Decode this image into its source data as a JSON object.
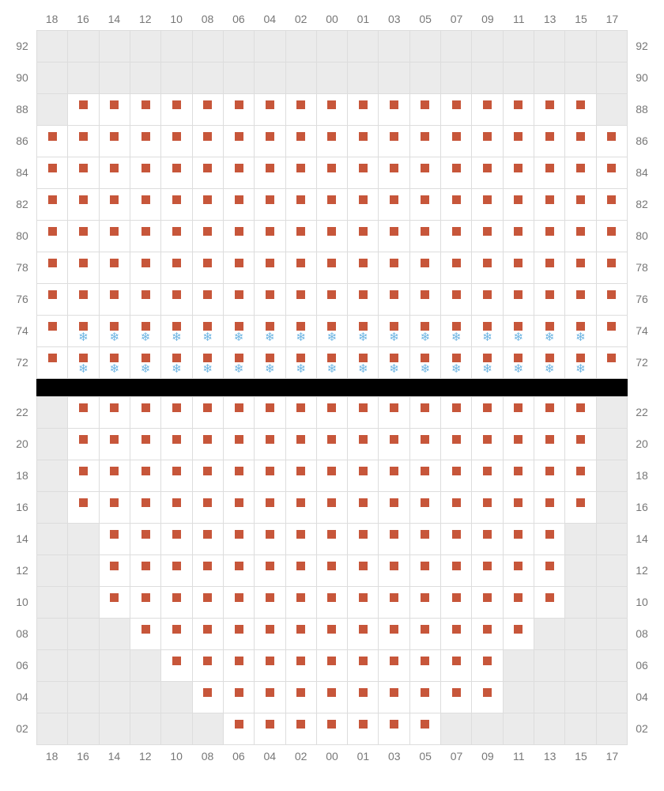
{
  "colors": {
    "seat_marker": "#c7563a",
    "snow_icon": "#6cb4e2",
    "empty_cell": "#ebebeb",
    "grid_border": "#dddddd",
    "label_text": "#777777",
    "gap_bg": "#000000"
  },
  "cell_size": 40,
  "columns": [
    "18",
    "16",
    "14",
    "12",
    "10",
    "08",
    "06",
    "04",
    "02",
    "00",
    "01",
    "03",
    "05",
    "07",
    "09",
    "11",
    "13",
    "15",
    "17"
  ],
  "top_section": {
    "rows": [
      "92",
      "90",
      "88",
      "86",
      "84",
      "82",
      "80",
      "78",
      "76",
      "74",
      "72"
    ],
    "empty_cells": {
      "92": [
        0,
        1,
        2,
        3,
        4,
        5,
        6,
        7,
        8,
        9,
        10,
        11,
        12,
        13,
        14,
        15,
        16,
        17,
        18
      ],
      "90": [
        0,
        1,
        2,
        3,
        4,
        5,
        6,
        7,
        8,
        9,
        10,
        11,
        12,
        13,
        14,
        15,
        16,
        17,
        18
      ],
      "88": [
        0,
        18
      ]
    },
    "seat_in": {
      "92": [],
      "90": [],
      "88": [
        1,
        2,
        3,
        4,
        5,
        6,
        7,
        8,
        9,
        10,
        11,
        12,
        13,
        14,
        15,
        16,
        17
      ],
      "86": [
        0,
        1,
        2,
        3,
        4,
        5,
        6,
        7,
        8,
        9,
        10,
        11,
        12,
        13,
        14,
        15,
        16,
        17,
        18
      ],
      "84": [
        0,
        1,
        2,
        3,
        4,
        5,
        6,
        7,
        8,
        9,
        10,
        11,
        12,
        13,
        14,
        15,
        16,
        17,
        18
      ],
      "82": [
        0,
        1,
        2,
        3,
        4,
        5,
        6,
        7,
        8,
        9,
        10,
        11,
        12,
        13,
        14,
        15,
        16,
        17,
        18
      ],
      "80": [
        0,
        1,
        2,
        3,
        4,
        5,
        6,
        7,
        8,
        9,
        10,
        11,
        12,
        13,
        14,
        15,
        16,
        17,
        18
      ],
      "78": [
        0,
        1,
        2,
        3,
        4,
        5,
        6,
        7,
        8,
        9,
        10,
        11,
        12,
        13,
        14,
        15,
        16,
        17,
        18
      ],
      "76": [
        0,
        1,
        2,
        3,
        4,
        5,
        6,
        7,
        8,
        9,
        10,
        11,
        12,
        13,
        14,
        15,
        16,
        17,
        18
      ],
      "74": [
        0,
        1,
        2,
        3,
        4,
        5,
        6,
        7,
        8,
        9,
        10,
        11,
        12,
        13,
        14,
        15,
        16,
        17,
        18
      ],
      "72": [
        0,
        1,
        2,
        3,
        4,
        5,
        6,
        7,
        8,
        9,
        10,
        11,
        12,
        13,
        14,
        15,
        16,
        17,
        18
      ]
    },
    "snow_rows": [
      "74",
      "72"
    ],
    "snow_cols": [
      1,
      2,
      3,
      4,
      5,
      6,
      7,
      8,
      9,
      10,
      11,
      12,
      13,
      14,
      15,
      16,
      17
    ]
  },
  "bottom_section": {
    "rows": [
      "22",
      "20",
      "18",
      "16",
      "14",
      "12",
      "10",
      "08",
      "06",
      "04",
      "02"
    ],
    "seat_in": {
      "22": [
        1,
        2,
        3,
        4,
        5,
        6,
        7,
        8,
        9,
        10,
        11,
        12,
        13,
        14,
        15,
        16,
        17
      ],
      "20": [
        1,
        2,
        3,
        4,
        5,
        6,
        7,
        8,
        9,
        10,
        11,
        12,
        13,
        14,
        15,
        16,
        17
      ],
      "18": [
        1,
        2,
        3,
        4,
        5,
        6,
        7,
        8,
        9,
        10,
        11,
        12,
        13,
        14,
        15,
        16,
        17
      ],
      "16": [
        1,
        2,
        3,
        4,
        5,
        6,
        7,
        8,
        9,
        10,
        11,
        12,
        13,
        14,
        15,
        16,
        17
      ],
      "14": [
        2,
        3,
        4,
        5,
        6,
        7,
        8,
        9,
        10,
        11,
        12,
        13,
        14,
        15,
        16
      ],
      "12": [
        2,
        3,
        4,
        5,
        6,
        7,
        8,
        9,
        10,
        11,
        12,
        13,
        14,
        15,
        16
      ],
      "10": [
        2,
        3,
        4,
        5,
        6,
        7,
        8,
        9,
        10,
        11,
        12,
        13,
        14,
        15,
        16
      ],
      "08": [
        3,
        4,
        5,
        6,
        7,
        8,
        9,
        10,
        11,
        12,
        13,
        14,
        15
      ],
      "06": [
        4,
        5,
        6,
        7,
        8,
        9,
        10,
        11,
        12,
        13,
        14
      ],
      "04": [
        5,
        6,
        7,
        8,
        9,
        10,
        11,
        12,
        13,
        14
      ],
      "02": [
        6,
        7,
        8,
        9,
        10,
        11,
        12
      ]
    },
    "empty_cells": {
      "22": [
        0,
        18
      ],
      "20": [
        0,
        18
      ],
      "18": [
        0,
        18
      ],
      "16": [
        0,
        18
      ],
      "14": [
        0,
        1,
        17,
        18
      ],
      "12": [
        0,
        1,
        17,
        18
      ],
      "10": [
        0,
        1,
        17,
        18
      ],
      "08": [
        0,
        1,
        2,
        16,
        17,
        18
      ],
      "06": [
        0,
        1,
        2,
        3,
        15,
        16,
        17,
        18
      ],
      "04": [
        0,
        1,
        2,
        3,
        4,
        15,
        16,
        17,
        18
      ],
      "02": [
        0,
        1,
        2,
        3,
        4,
        5,
        13,
        14,
        15,
        16,
        17,
        18
      ]
    }
  }
}
